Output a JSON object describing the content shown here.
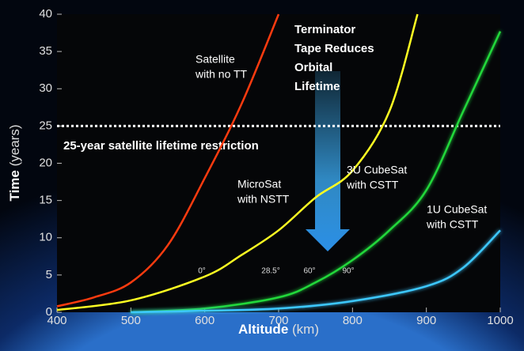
{
  "chart_data": {
    "type": "line",
    "x_label": "Altitude",
    "x_unit": "(km)",
    "y_label": "Time",
    "y_unit": "(years)",
    "xlim": [
      400,
      1000
    ],
    "xticks": [
      400,
      500,
      600,
      700,
      800,
      900,
      1000
    ],
    "ylim": [
      0,
      40
    ],
    "yticks": [
      0,
      5,
      10,
      15,
      20,
      25,
      30,
      35,
      40
    ],
    "series": [
      {
        "label": [
          "Satellite",
          "with no TT"
        ],
        "color": "#ff3b0f",
        "x": [
          400,
          450,
          500,
          550,
          600,
          650,
          700
        ],
        "values": [
          0.8,
          2,
          4,
          9,
          18,
          28,
          40
        ]
      },
      {
        "label": [
          "MicroSat",
          "with NSTT"
        ],
        "color": "#ffff22",
        "x": [
          400,
          500,
          600,
          650,
          700,
          750,
          800,
          850,
          888
        ],
        "values": [
          0.3,
          1.6,
          4.8,
          7.7,
          11,
          15.4,
          19,
          27,
          40
        ]
      },
      {
        "label": [
          "3U CubeSat",
          "with CSTT"
        ],
        "color": "#22d83a",
        "x": [
          500,
          600,
          700,
          750,
          800,
          850,
          900,
          950,
          1000
        ],
        "values": [
          0,
          0.5,
          2,
          4,
          7,
          11,
          16.4,
          27,
          37.7
        ]
      },
      {
        "label": [
          "1U CubeSat",
          "with CSTT"
        ],
        "color": "#3cc8ff",
        "x": [
          500,
          600,
          700,
          800,
          900,
          950,
          1000
        ],
        "values": [
          0,
          0.2,
          0.5,
          1.5,
          3.5,
          6,
          11
        ]
      }
    ],
    "threshold": {
      "value": 25,
      "label": "25-year satellite lifetime restriction"
    },
    "arrow_text": [
      "Terminator",
      "Tape Reduces",
      "Orbital",
      "Lifetime"
    ],
    "angle_labels": [
      "0°",
      "28.5°",
      "60°",
      "90°"
    ]
  }
}
